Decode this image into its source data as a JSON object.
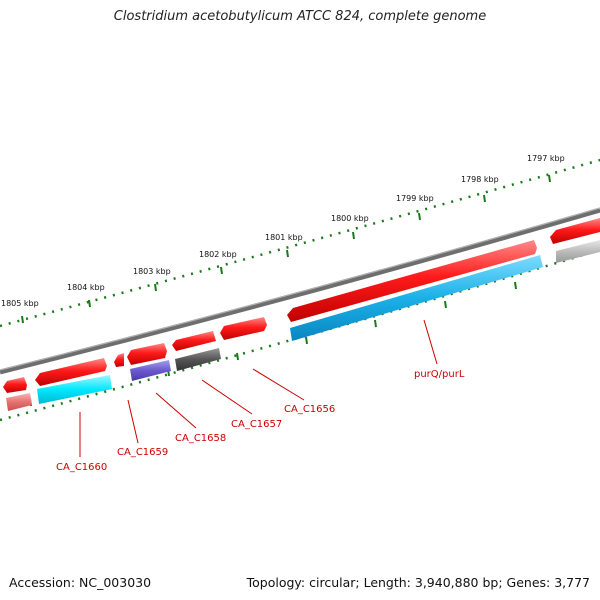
{
  "title": "Clostridium acetobutylicum ATCC 824, complete genome",
  "footer": {
    "accession": "Accession: NC_003030",
    "topology": "Topology: circular; Length: 3,940,880 bp; Genes: 3,777"
  },
  "scale_ticks": [
    {
      "label": "1797 kbp"
    },
    {
      "label": "1798 kbp"
    },
    {
      "label": "1799 kbp"
    },
    {
      "label": "1800 kbp"
    },
    {
      "label": "1801 kbp"
    },
    {
      "label": "1802 kbp"
    },
    {
      "label": "1803 kbp"
    },
    {
      "label": "1804 kbp"
    },
    {
      "label": "1805 kbp"
    }
  ],
  "gene_labels": [
    {
      "name": "purQ/purL"
    },
    {
      "name": "CA_C1656"
    },
    {
      "name": "CA_C1657"
    },
    {
      "name": "CA_C1658"
    },
    {
      "name": "CA_C1659"
    },
    {
      "name": "CA_C1660"
    }
  ],
  "colors": {
    "backbone": "#808080",
    "gene_red": "#ff0000",
    "gene_cyan": "#00e5ff",
    "gene_blue": "#1ab0e8",
    "gene_purple": "#6a5acd",
    "gene_gray": "#555555",
    "gene_lightgray": "#b8b8b8",
    "gene_pink": "#e87070",
    "tick_green": "#1a7a1a",
    "label_red": "#cc0000"
  }
}
